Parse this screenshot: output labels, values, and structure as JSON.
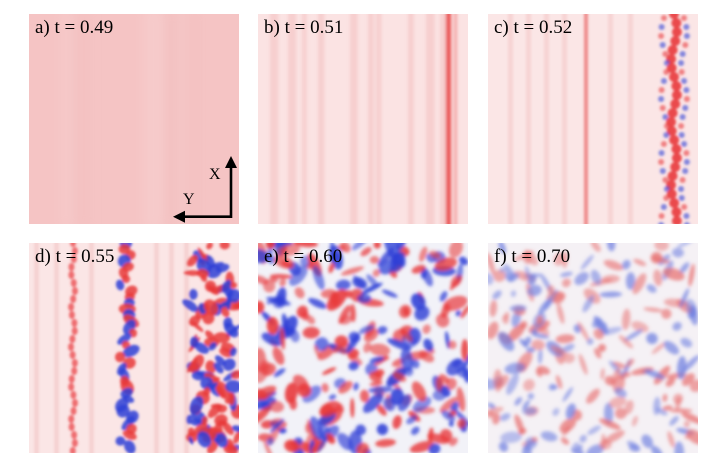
{
  "panels": [
    {
      "id": "a",
      "label": "a) t = 0.49",
      "field": "uniform"
    },
    {
      "id": "b",
      "label": "b) t = 0.51",
      "field": "streaks-weak"
    },
    {
      "id": "c",
      "label": "c) t = 0.52",
      "field": "streaks-oscillating"
    },
    {
      "id": "d",
      "label": "d) t = 0.55",
      "field": "streaks-breakdown"
    },
    {
      "id": "e",
      "label": "e) t = 0.60",
      "field": "turbulent-strong"
    },
    {
      "id": "f",
      "label": "f) t = 0.70",
      "field": "turbulent-decaying"
    }
  ],
  "axes": {
    "x_label": "X",
    "y_label": "Y"
  },
  "colors": {
    "positive": "#e8383a",
    "negative": "#2f3fd6",
    "neutral": "#ffffff",
    "background_tint": "#f6c9c9"
  }
}
